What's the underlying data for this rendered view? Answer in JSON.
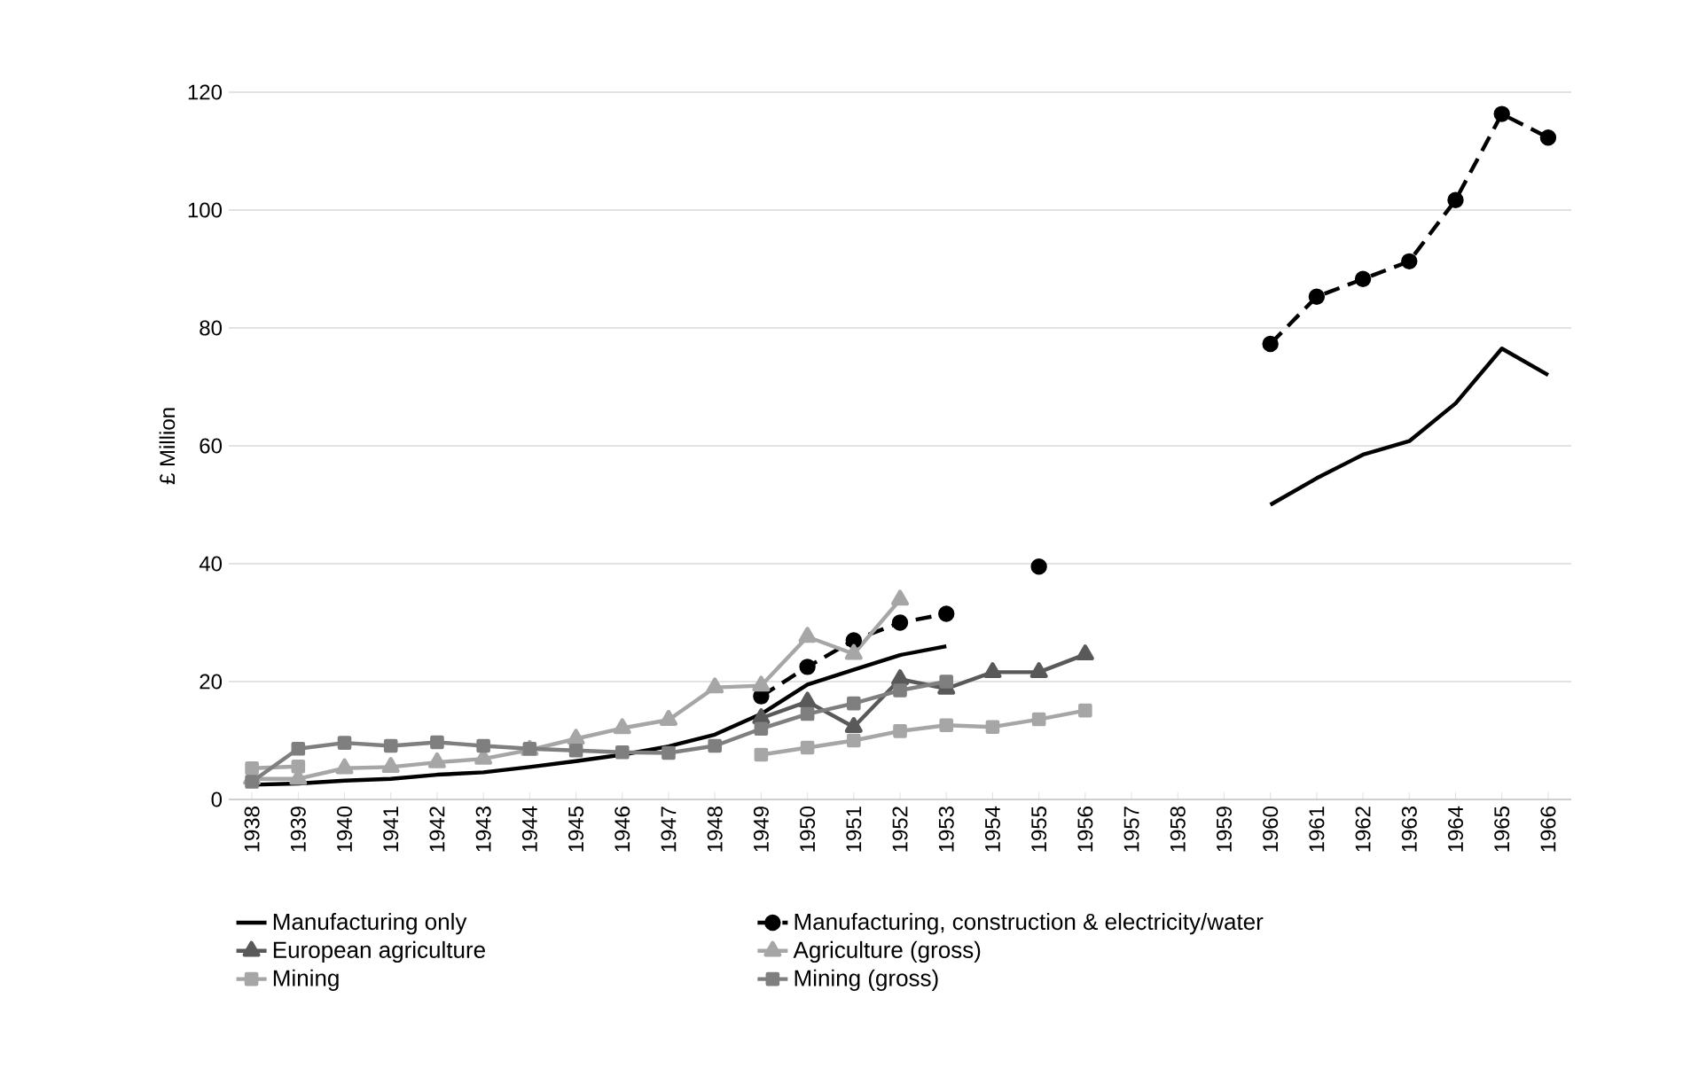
{
  "chart_data": {
    "type": "line",
    "ylabel": "£ Million",
    "categories": [
      "1938",
      "1939",
      "1940",
      "1941",
      "1942",
      "1943",
      "1944",
      "1945",
      "1946",
      "1947",
      "1948",
      "1949",
      "1950",
      "1951",
      "1952",
      "1953",
      "1954",
      "1955",
      "1956",
      "1957",
      "1958",
      "1959",
      "1960",
      "1961",
      "1962",
      "1963",
      "1964",
      "1965",
      "1966"
    ],
    "ylim": [
      0,
      120
    ],
    "yticks": [
      0,
      20,
      40,
      60,
      80,
      100,
      120
    ],
    "grid": "y",
    "legend": "bottom",
    "series": [
      {
        "name": "Manufacturing only",
        "color": "#000000",
        "marker": "none",
        "line_style": "solid",
        "values": [
          2.5,
          2.7,
          3.2,
          3.5,
          4.2,
          4.6,
          5.5,
          6.5,
          7.6,
          9,
          11,
          14.5,
          19.5,
          22,
          24.5,
          26,
          null,
          null,
          null,
          null,
          null,
          null,
          50,
          54.5,
          58.5,
          60.8,
          67.2,
          76.5,
          72
        ]
      },
      {
        "name": "Manufacturing, construction & electricity/water",
        "color": "#000000",
        "marker": "circle",
        "line_style": "dashed",
        "values": [
          null,
          null,
          null,
          null,
          null,
          null,
          null,
          null,
          null,
          null,
          null,
          17.5,
          22.5,
          27,
          30,
          31.5,
          null,
          39.5,
          null,
          null,
          null,
          null,
          77.3,
          85.3,
          88.3,
          91.3,
          101.7,
          116.3,
          112.3
        ]
      },
      {
        "name": "European agriculture",
        "color": "#595959",
        "marker": "triangle",
        "line_style": "solid",
        "values": [
          null,
          null,
          null,
          null,
          null,
          null,
          null,
          null,
          null,
          null,
          null,
          13.8,
          16.6,
          12.3,
          20.4,
          18.8,
          21.6,
          21.6,
          24.6,
          null,
          null,
          null,
          null,
          null,
          null,
          null,
          null,
          null,
          null
        ]
      },
      {
        "name": "Agriculture (gross)",
        "color": "#a6a6a6",
        "marker": "triangle",
        "line_style": "solid",
        "values": [
          3.5,
          3.5,
          5.3,
          5.5,
          6.3,
          6.9,
          8.4,
          10.3,
          12.1,
          13.5,
          19,
          19.3,
          27.6,
          24.7,
          33.9,
          null,
          null,
          null,
          null,
          null,
          null,
          null,
          null,
          null,
          null,
          null,
          null,
          null,
          null
        ]
      },
      {
        "name": "Mining",
        "color": "#a6a6a6",
        "marker": "square",
        "line_style": "solid",
        "values": [
          5.3,
          5.6,
          null,
          null,
          null,
          null,
          null,
          null,
          null,
          null,
          null,
          7.6,
          8.8,
          10,
          11.6,
          12.6,
          12.3,
          13.6,
          15.1,
          null,
          null,
          null,
          null,
          null,
          null,
          null,
          null,
          null,
          null
        ]
      },
      {
        "name": "Mining (gross)",
        "color": "#7f7f7f",
        "marker": "square",
        "line_style": "solid",
        "values": [
          3,
          8.6,
          9.6,
          9.1,
          9.7,
          9.1,
          8.6,
          8.3,
          8,
          7.9,
          9.1,
          12,
          14.5,
          16.3,
          18.5,
          20,
          null,
          null,
          null,
          null,
          null,
          null,
          null,
          null,
          null,
          null,
          null,
          null,
          null
        ]
      }
    ]
  }
}
